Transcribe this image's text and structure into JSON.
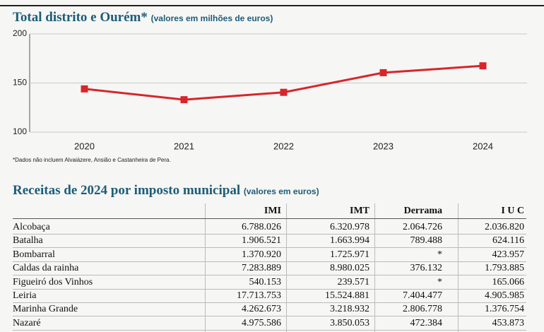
{
  "chart_data": {
    "type": "line",
    "title": "Total distrito e Ourém*",
    "subtitle": "(valores em milhões de euros)",
    "categories": [
      "2020",
      "2021",
      "2022",
      "2023",
      "2024"
    ],
    "series": [
      {
        "name": "Total distrito e Ourém",
        "color": "#d7262b",
        "values": [
          144,
          133,
          140.5,
          160.5,
          167.5
        ]
      }
    ],
    "ylim": [
      100,
      200
    ],
    "yticks": [
      100,
      150,
      200
    ],
    "grid": true,
    "note": "*Dados não incluem Alvaiázere, Ansião e Castanheira de Pera."
  },
  "table": {
    "title": "Receitas de 2024 por imposto municipal",
    "subtitle": "(valores em euros)",
    "columns": [
      "IMI",
      "IMT",
      "Derrama",
      "I U C"
    ],
    "rows": [
      [
        "Alcobaça",
        "6.788.026",
        "6.320.978",
        "2.064.726",
        "2.036.820"
      ],
      [
        "Batalha",
        "1.906.521",
        "1.663.994",
        "789.488",
        "624.116"
      ],
      [
        "Bombarral",
        "1.370.920",
        "1.725.971",
        "*",
        "423.957"
      ],
      [
        "Caldas da rainha",
        "7.283.889",
        "8.980.025",
        "376.132",
        "1.793.885"
      ],
      [
        "Figueiró dos Vinhos",
        "540.153",
        "239.571",
        "*",
        "165.066"
      ],
      [
        "Leiria",
        "17.713.753",
        "15.524.881",
        "7.404.477",
        "4.905.985"
      ],
      [
        "Marinha Grande",
        "4.262.673",
        "3.218.932",
        "2.806.778",
        "1.376.754"
      ],
      [
        "Nazaré",
        "4.975.586",
        "3.850.053",
        "472.384",
        "453.873"
      ]
    ]
  }
}
